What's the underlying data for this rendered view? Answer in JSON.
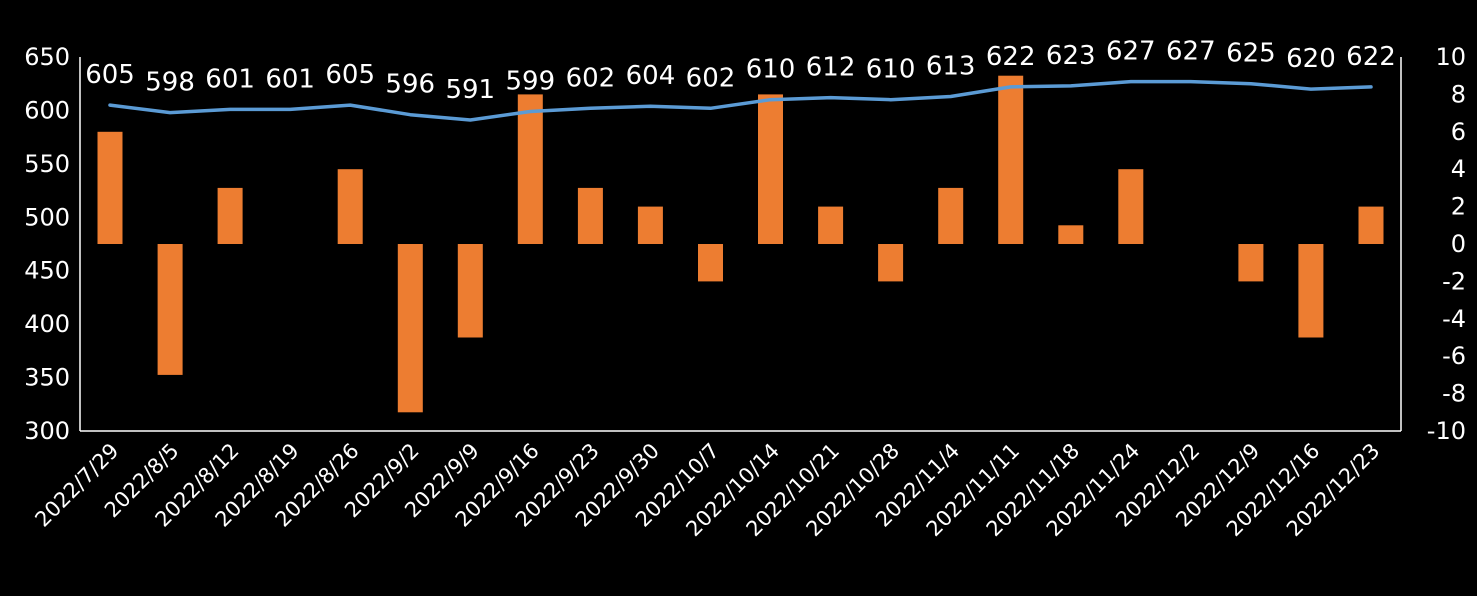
{
  "chart_data": {
    "type": "bar+line",
    "title": "",
    "categories": [
      "2022/7/29",
      "2022/8/5",
      "2022/8/12",
      "2022/8/19",
      "2022/8/26",
      "2022/9/2",
      "2022/9/9",
      "2022/9/16",
      "2022/9/23",
      "2022/9/30",
      "2022/10/7",
      "2022/10/14",
      "2022/10/21",
      "2022/10/28",
      "2022/11/4",
      "2022/11/11",
      "2022/11/18",
      "2022/11/24",
      "2022/12/2",
      "2022/12/9",
      "2022/12/16",
      "2022/12/23"
    ],
    "series": [
      {
        "name": "line",
        "type": "line",
        "axis": "left",
        "color": "#5b9bd5",
        "values": [
          605,
          598,
          601,
          601,
          605,
          596,
          591,
          599,
          602,
          604,
          602,
          610,
          612,
          610,
          613,
          622,
          623,
          627,
          627,
          625,
          620,
          622
        ],
        "labels": [
          "605",
          "598",
          "601",
          "601",
          "605",
          "596",
          "591",
          "599",
          "602",
          "604",
          "602",
          "610",
          "612",
          "610",
          "613",
          "622",
          "623",
          "627",
          "627",
          "625",
          "620",
          "622"
        ]
      },
      {
        "name": "bars",
        "type": "bar",
        "axis": "right",
        "color": "#ed7d31",
        "values": [
          6,
          -7,
          3,
          0,
          4,
          -9,
          -5,
          8,
          3,
          2,
          -2,
          8,
          2,
          -2,
          3,
          9,
          1,
          4,
          0,
          -2,
          -5,
          2
        ]
      }
    ],
    "left_axis": {
      "min": 300,
      "max": 650,
      "ticks": [
        "300",
        "350",
        "400",
        "450",
        "500",
        "550",
        "600",
        "650"
      ]
    },
    "right_axis": {
      "min": -10,
      "max": 10,
      "ticks": [
        "-10",
        "-8",
        "-6",
        "-4",
        "-2",
        "0",
        "2",
        "4",
        "6",
        "8",
        "10"
      ]
    },
    "xlabel": "",
    "ylabel": "",
    "legend": "none",
    "grid": false,
    "colors": {
      "background": "#000000",
      "axis": "#ffffff",
      "text": "#ffffff"
    }
  }
}
